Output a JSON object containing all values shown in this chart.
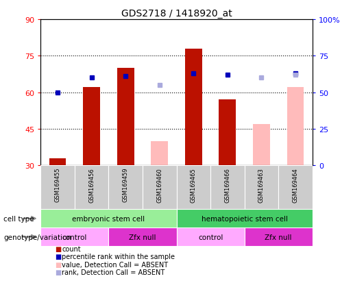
{
  "title": "GDS2718 / 1418920_at",
  "samples": [
    "GSM169455",
    "GSM169456",
    "GSM169459",
    "GSM169460",
    "GSM169465",
    "GSM169466",
    "GSM169463",
    "GSM169464"
  ],
  "count_values": [
    33,
    62,
    70,
    null,
    78,
    57,
    null,
    null
  ],
  "count_absent_values": [
    null,
    null,
    null,
    40,
    null,
    null,
    47,
    62
  ],
  "percentile_rank": [
    50,
    60,
    61,
    null,
    63,
    62,
    null,
    63
  ],
  "percentile_rank_absent": [
    null,
    null,
    null,
    55,
    null,
    null,
    60,
    62
  ],
  "ylim_left": [
    30,
    90
  ],
  "ylim_right": [
    0,
    100
  ],
  "yticks_left": [
    30,
    45,
    60,
    75,
    90
  ],
  "yticks_right": [
    0,
    25,
    50,
    75,
    100
  ],
  "ytick_labels_left": [
    "30",
    "45",
    "60",
    "75",
    "90"
  ],
  "ytick_labels_right": [
    "0",
    "25",
    "50",
    "75",
    "100%"
  ],
  "bar_width": 0.5,
  "count_color": "#bb1100",
  "count_absent_color": "#ffbbbb",
  "rank_color": "#0000bb",
  "rank_absent_color": "#aaaadd",
  "cell_type_groups": [
    {
      "label": "embryonic stem cell",
      "start": 0,
      "end": 3,
      "color": "#99ee99"
    },
    {
      "label": "hematopoietic stem cell",
      "start": 4,
      "end": 7,
      "color": "#44cc66"
    }
  ],
  "genotype_groups": [
    {
      "label": "control",
      "start": 0,
      "end": 1,
      "color": "#ffaaff"
    },
    {
      "label": "Zfx null",
      "start": 2,
      "end": 3,
      "color": "#dd33cc"
    },
    {
      "label": "control",
      "start": 4,
      "end": 5,
      "color": "#ffaaff"
    },
    {
      "label": "Zfx null",
      "start": 6,
      "end": 7,
      "color": "#dd33cc"
    }
  ],
  "tick_bg_color": "#cccccc",
  "legend_items": [
    {
      "label": "count",
      "color": "#bb1100"
    },
    {
      "label": "percentile rank within the sample",
      "color": "#0000bb"
    },
    {
      "label": "value, Detection Call = ABSENT",
      "color": "#ffbbbb"
    },
    {
      "label": "rank, Detection Call = ABSENT",
      "color": "#aaaadd"
    }
  ]
}
